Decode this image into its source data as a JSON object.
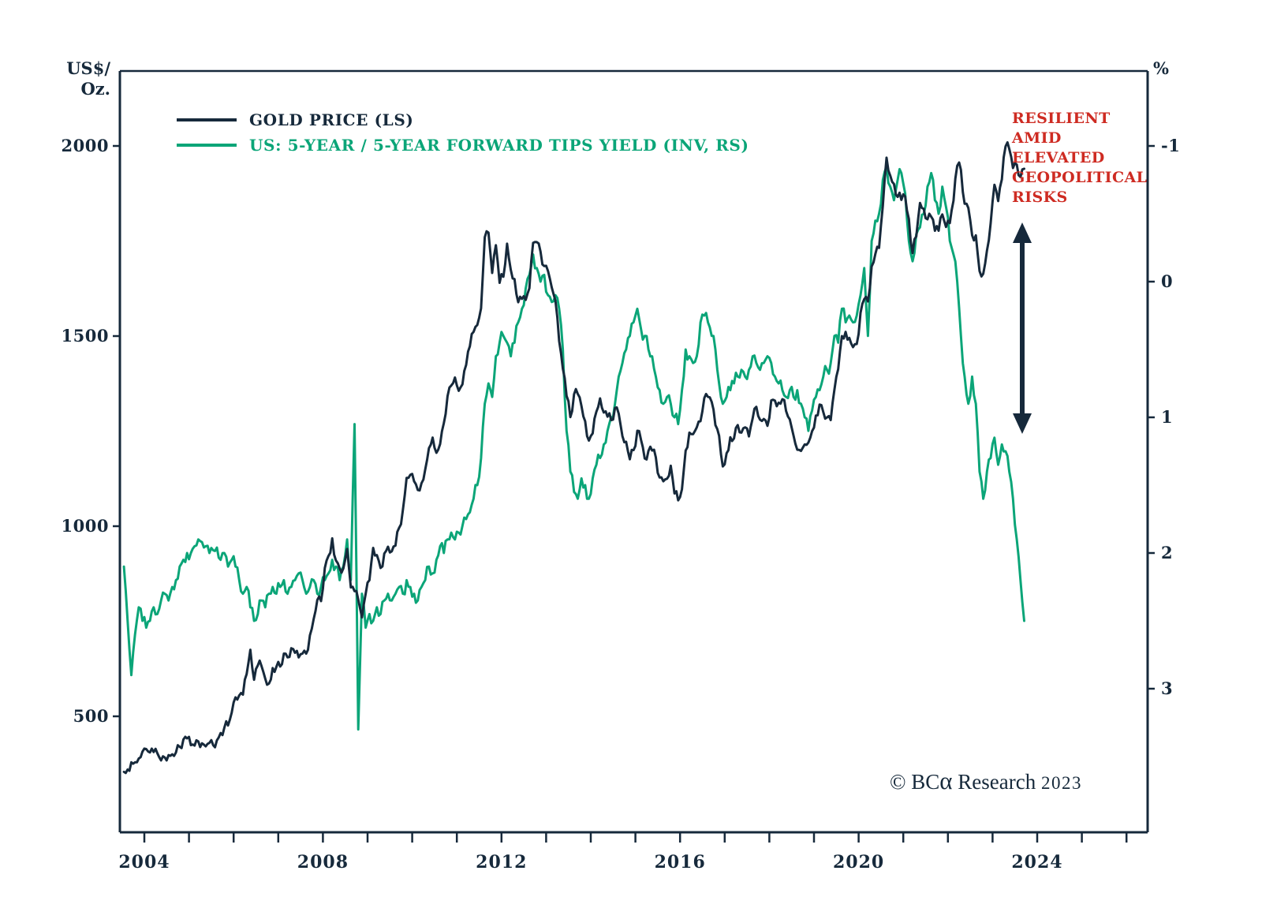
{
  "colors": {
    "navy": "#16293B",
    "green": "#0BA578",
    "red": "#CE2B22",
    "background": "#FFFFFF"
  },
  "chart_data": {
    "type": "line",
    "title": "",
    "left_axis": {
      "unit_lines": [
        "US$/",
        "Oz."
      ],
      "unit": "US$/Oz.",
      "ticks": [
        2000,
        1500,
        1000,
        500
      ],
      "range": [
        300,
        2100
      ]
    },
    "right_axis": {
      "unit": "%",
      "ticks": [
        -1,
        0,
        1,
        2,
        3
      ],
      "inverted": true,
      "range": [
        -1.2,
        3.5
      ]
    },
    "x_axis": {
      "labels": [
        2004,
        2008,
        2012,
        2016,
        2020,
        2024
      ],
      "tick_start": 2004,
      "tick_end": 2026,
      "minor_tick_every_years": 1
    },
    "start_year": 2003,
    "start_month": 7,
    "frequency": "monthly",
    "legend_position": "top-left-inside",
    "grid": false,
    "series": [
      {
        "name": "GOLD PRICE (LS)",
        "axis": "left",
        "color": "#16293B",
        "values": [
          354,
          360,
          379,
          379,
          389,
          407,
          414,
          405,
          406,
          403,
          384,
          392,
          398,
          400,
          405,
          420,
          439,
          442,
          424,
          423,
          434,
          429,
          421,
          430,
          424,
          437,
          456,
          470,
          476,
          510,
          550,
          555,
          557,
          611,
          675,
          596,
          634,
          632,
          599,
          586,
          627,
          630,
          631,
          665,
          655,
          679,
          667,
          655,
          665,
          665,
          713,
          755,
          806,
          803,
          890,
          922,
          968,
          910,
          889,
          889,
          940,
          839,
          829,
          807,
          760,
          822,
          858,
          943,
          924,
          890,
          928,
          946,
          934,
          949,
          996,
          1043,
          1127,
          1135,
          1118,
          1095,
          1113,
          1149,
          1205,
          1233,
          1193,
          1216,
          1271,
          1342,
          1370,
          1391,
          1356,
          1373,
          1424,
          1473,
          1511,
          1529,
          1573,
          1760,
          1772,
          1666,
          1739,
          1640,
          1656,
          1743,
          1674,
          1650,
          1589,
          1598,
          1595,
          1626,
          1745,
          1747,
          1722,
          1684,
          1671,
          1628,
          1593,
          1487,
          1414,
          1343,
          1287,
          1347,
          1348,
          1316,
          1276,
          1225,
          1244,
          1301,
          1336,
          1299,
          1288,
          1279,
          1311,
          1296,
          1237,
          1222,
          1176,
          1200,
          1251,
          1227,
          1178,
          1198,
          1199,
          1181,
          1128,
          1118,
          1125,
          1159,
          1086,
          1068,
          1097,
          1199,
          1246,
          1242,
          1260,
          1276,
          1337,
          1340,
          1327,
          1266,
          1238,
          1157,
          1192,
          1234,
          1231,
          1266,
          1246,
          1260,
          1236,
          1283,
          1314,
          1280,
          1282,
          1264,
          1331,
          1330,
          1325,
          1334,
          1303,
          1281,
          1238,
          1201,
          1198,
          1215,
          1220,
          1250,
          1291,
          1320,
          1300,
          1286,
          1279,
          1359,
          1413,
          1500,
          1511,
          1495,
          1471,
          1479,
          1561,
          1597,
          1591,
          1683,
          1716,
          1732,
          1843,
          1969,
          1922,
          1900,
          1866,
          1858,
          1867,
          1808,
          1718,
          1762,
          1850,
          1835,
          1807,
          1814,
          1777,
          1777,
          1820,
          1787,
          1797,
          1856,
          1948,
          1937,
          1848,
          1837,
          1765,
          1765,
          1671,
          1664,
          1725,
          1797,
          1898,
          1855,
          1912,
          1999,
          1992,
          1942,
          1951,
          1918,
          1940
        ]
      },
      {
        "name": "US: 5-YEAR / 5-YEAR FORWARD TIPS YIELD (INV, RS)",
        "axis": "right",
        "color": "#0BA578",
        "values": [
          2.1,
          2.5,
          2.9,
          2.6,
          2.4,
          2.5,
          2.55,
          2.5,
          2.4,
          2.45,
          2.35,
          2.3,
          2.35,
          2.25,
          2.2,
          2.1,
          2.05,
          2.0,
          2.0,
          1.95,
          1.9,
          1.92,
          1.95,
          2.0,
          1.98,
          1.96,
          2.05,
          2.0,
          2.1,
          2.05,
          2.1,
          2.2,
          2.3,
          2.25,
          2.4,
          2.5,
          2.45,
          2.35,
          2.4,
          2.3,
          2.25,
          2.3,
          2.25,
          2.2,
          2.3,
          2.25,
          2.2,
          2.15,
          2.2,
          2.3,
          2.25,
          2.2,
          2.3,
          2.25,
          2.2,
          2.15,
          2.05,
          2.1,
          2.2,
          2.1,
          1.9,
          2.2,
          1.05,
          3.3,
          2.3,
          2.55,
          2.45,
          2.5,
          2.4,
          2.45,
          2.35,
          2.3,
          2.35,
          2.3,
          2.25,
          2.3,
          2.2,
          2.25,
          2.3,
          2.35,
          2.25,
          2.2,
          2.1,
          2.15,
          2.05,
          1.95,
          2.0,
          1.9,
          1.85,
          1.9,
          1.85,
          1.8,
          1.75,
          1.7,
          1.6,
          1.5,
          1.3,
          0.9,
          0.75,
          0.85,
          0.55,
          0.45,
          0.4,
          0.45,
          0.55,
          0.45,
          0.3,
          0.2,
          0.05,
          -0.05,
          -0.2,
          -0.1,
          0.0,
          -0.05,
          0.1,
          0.15,
          0.1,
          0.2,
          0.5,
          1.1,
          1.4,
          1.55,
          1.6,
          1.45,
          1.5,
          1.6,
          1.45,
          1.35,
          1.3,
          1.2,
          1.1,
          1.0,
          0.9,
          0.7,
          0.6,
          0.5,
          0.4,
          0.3,
          0.2,
          0.35,
          0.4,
          0.5,
          0.55,
          0.7,
          0.8,
          0.9,
          0.85,
          0.9,
          1.0,
          1.05,
          0.8,
          0.5,
          0.55,
          0.6,
          0.55,
          0.3,
          0.25,
          0.3,
          0.4,
          0.5,
          0.75,
          0.9,
          0.85,
          0.8,
          0.75,
          0.7,
          0.65,
          0.7,
          0.65,
          0.55,
          0.6,
          0.65,
          0.6,
          0.55,
          0.6,
          0.7,
          0.75,
          0.8,
          0.85,
          0.8,
          0.85,
          0.8,
          0.9,
          1.0,
          1.1,
          0.95,
          0.85,
          0.8,
          0.7,
          0.65,
          0.6,
          0.4,
          0.45,
          0.2,
          0.3,
          0.25,
          0.3,
          0.25,
          0.1,
          -0.1,
          0.4,
          -0.3,
          -0.45,
          -0.5,
          -0.75,
          -0.85,
          -0.7,
          -0.6,
          -0.75,
          -0.8,
          -0.65,
          -0.3,
          -0.15,
          -0.35,
          -0.4,
          -0.5,
          -0.7,
          -0.8,
          -0.6,
          -0.5,
          -0.7,
          -0.55,
          -0.3,
          -0.2,
          0.0,
          0.4,
          0.7,
          0.9,
          0.7,
          0.9,
          1.4,
          1.6,
          1.4,
          1.3,
          1.15,
          1.35,
          1.2,
          1.25,
          1.4,
          1.6,
          1.9,
          2.2,
          2.5
        ]
      }
    ],
    "annotation": {
      "text": "RESILIENT AMID ELEVATED GEOPOLITICAL RISKS",
      "lines": [
        "RESILIENT",
        "AMID",
        "ELEVATED",
        "GEOPOLITICAL",
        "RISKS"
      ],
      "color": "#CE2B22"
    },
    "copyright": {
      "prefix": "© BC",
      "alpha": "α",
      "mid": " Research ",
      "year": "2023"
    }
  }
}
